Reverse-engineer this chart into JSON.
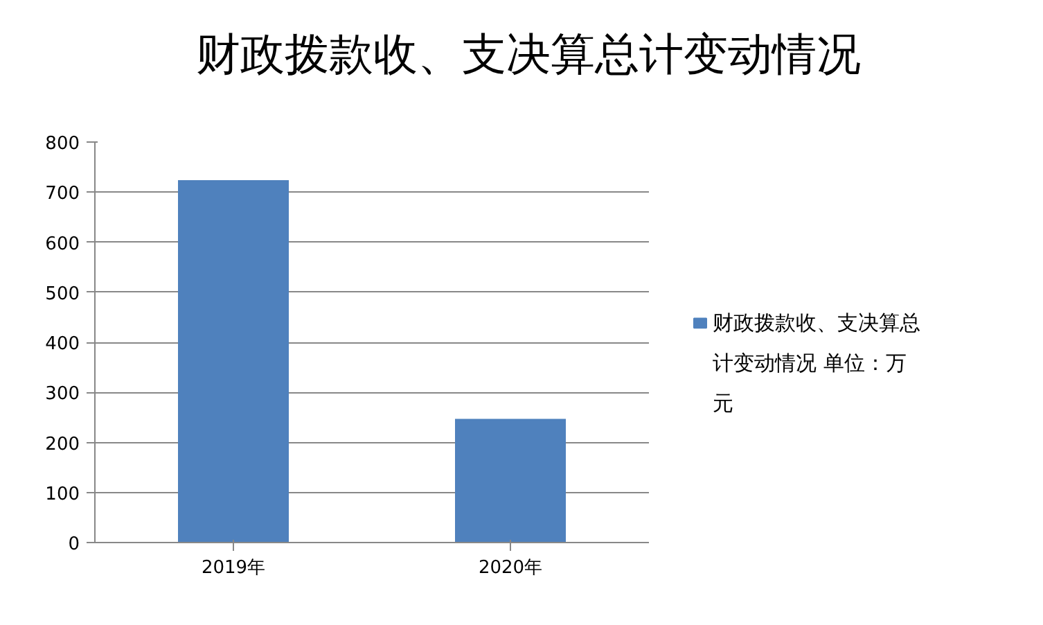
{
  "chart_data": {
    "type": "bar",
    "title": "财政拨款收、支决算总计变动情况",
    "categories": [
      "2019年",
      "2020年"
    ],
    "series": [
      {
        "name": "财政拨款收、支决算总计变动情况 单位：万元",
        "color": "#4f81bd",
        "values": [
          724,
          247
        ]
      }
    ],
    "ylim": [
      0,
      800
    ],
    "yticks": [
      0,
      100,
      200,
      300,
      400,
      500,
      600,
      700,
      800
    ],
    "grid": "y",
    "legend": "right"
  }
}
